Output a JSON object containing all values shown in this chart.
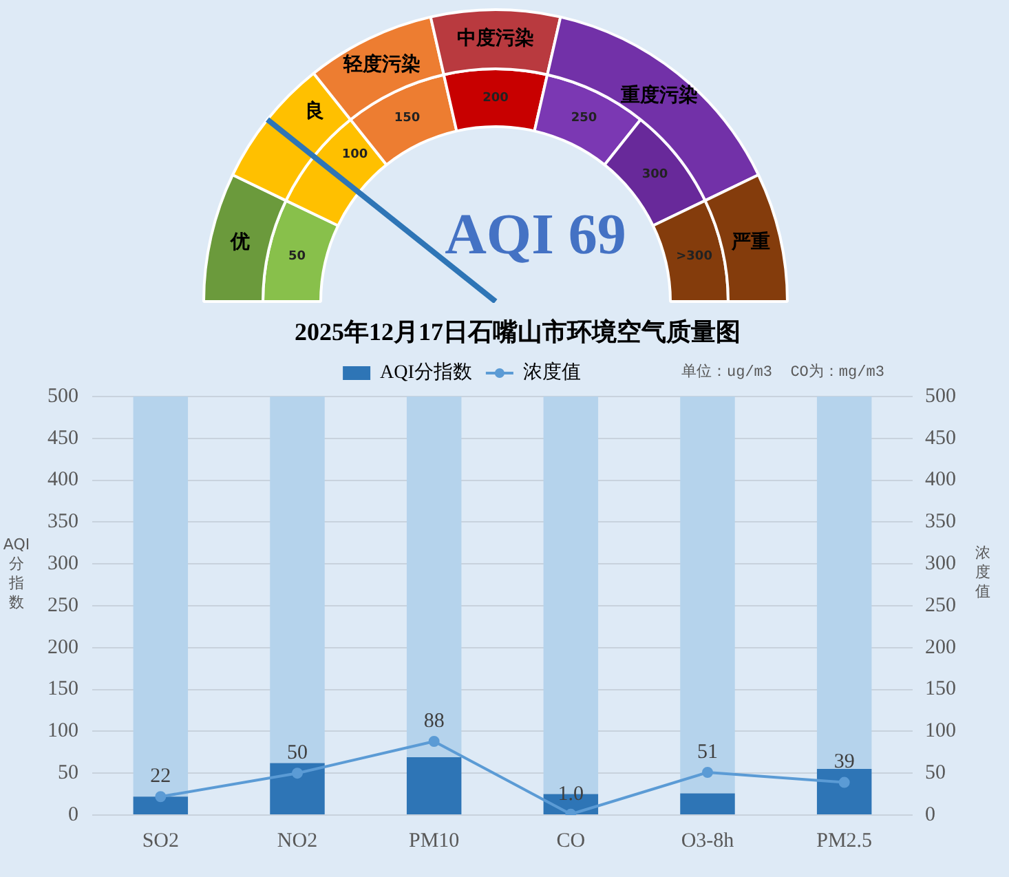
{
  "chart_data": [
    {
      "type": "donut",
      "categories": [
        "优",
        "良",
        "轻度污染",
        "中度污染",
        "重度污染",
        "严重"
      ],
      "values": [
        14.29,
        14.29,
        14.29,
        14.29,
        28.57,
        14.29
      ],
      "colors": [
        "#6b9a3c",
        "#ffc000",
        "#ed7d31",
        "#b93a3f",
        "#7231a8",
        "#843c0c"
      ],
      "needle": "良",
      "annotations": [
        "AQI 69"
      ]
    },
    {
      "type": "donut",
      "categories": [
        "50",
        "100",
        "150",
        "200",
        "250",
        "300",
        ">300"
      ],
      "values": [
        14.29,
        14.29,
        14.29,
        14.29,
        14.29,
        14.29,
        14.29
      ],
      "colors": [
        "#88c04b",
        "#ffc000",
        "#ed7d31",
        "#c80000",
        "#7b38b3",
        "#68299a",
        "#843c0c"
      ]
    },
    {
      "type": "bar",
      "title": "2025年12月17日石嘴山市环境空气质量图",
      "categories": [
        "SO2",
        "NO2",
        "PM10",
        "CO",
        "O3-8h",
        "PM2.5"
      ],
      "stacked": true,
      "series": [
        {
          "name": "AQI分指数",
          "type": "bar",
          "color": "#2e75b6",
          "values": [
            22,
            62,
            69,
            25,
            26,
            55
          ]
        },
        {
          "type": "bar",
          "color": "#b5d3ec",
          "values": [
            478,
            438,
            431,
            475,
            474,
            445
          ]
        },
        {
          "name": "浓度值",
          "type": "line",
          "axis": "y2",
          "color": "#5b9bd5",
          "values": [
            22,
            50,
            88,
            1.0,
            51,
            39
          ],
          "value_labels": [
            "22",
            "50",
            "88",
            "1.0",
            "51",
            "39"
          ]
        }
      ],
      "ylabel": "AQI分指数",
      "y2label": "浓度值",
      "ylim": [
        0,
        500
      ],
      "yticks": [
        0,
        50,
        100,
        150,
        200,
        250,
        300,
        350,
        400,
        450,
        500
      ],
      "y2lim": [
        0,
        500
      ],
      "y2ticks": [
        0,
        50,
        100,
        150,
        200,
        250,
        300,
        350,
        400,
        450,
        500
      ],
      "grid": "y",
      "legend": "top",
      "marker": "circle",
      "line_style": "solid",
      "annotations": [
        "单位：ug/m3  CO为：mg/m3"
      ]
    }
  ]
}
